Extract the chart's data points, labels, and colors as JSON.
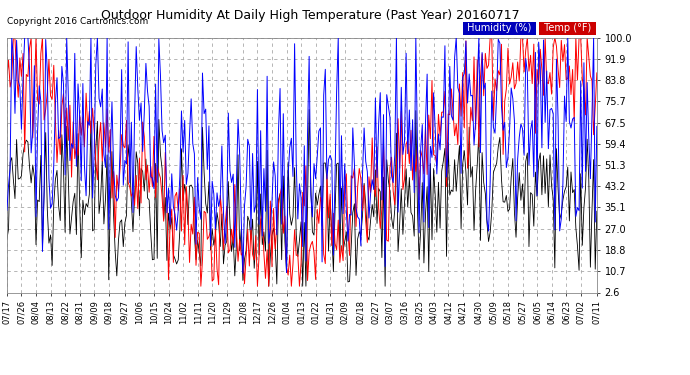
{
  "title": "Outdoor Humidity At Daily High Temperature (Past Year) 20160717",
  "copyright": "Copyright 2016 Cartronics.com",
  "legend_humidity": "Humidity (%)",
  "legend_temp": "Temp (°F)",
  "legend_humidity_bg": "#0000bb",
  "legend_temp_bg": "#cc0000",
  "ylim": [
    2.6,
    100.0
  ],
  "yticks": [
    100.0,
    91.9,
    83.8,
    75.7,
    67.5,
    59.4,
    51.3,
    43.2,
    35.1,
    27.0,
    18.8,
    10.7,
    2.6
  ],
  "background_color": "#ffffff",
  "plot_bg": "#ffffff",
  "grid_color": "#aaaaaa",
  "humidity_color": "#0000ff",
  "temp_color": "#ff0000",
  "black_color": "#000000",
  "x_tick_labels": [
    "07/17",
    "07/26",
    "08/04",
    "08/13",
    "08/22",
    "08/31",
    "09/09",
    "09/18",
    "09/27",
    "10/06",
    "10/15",
    "10/24",
    "11/02",
    "11/11",
    "11/20",
    "11/29",
    "12/08",
    "12/17",
    "12/26",
    "01/04",
    "01/13",
    "01/22",
    "01/31",
    "02/09",
    "02/18",
    "02/27",
    "03/07",
    "03/16",
    "03/25",
    "04/03",
    "04/12",
    "04/21",
    "04/30",
    "05/09",
    "05/18",
    "05/27",
    "06/05",
    "06/14",
    "06/23",
    "07/02",
    "07/11"
  ],
  "n_points": 366
}
